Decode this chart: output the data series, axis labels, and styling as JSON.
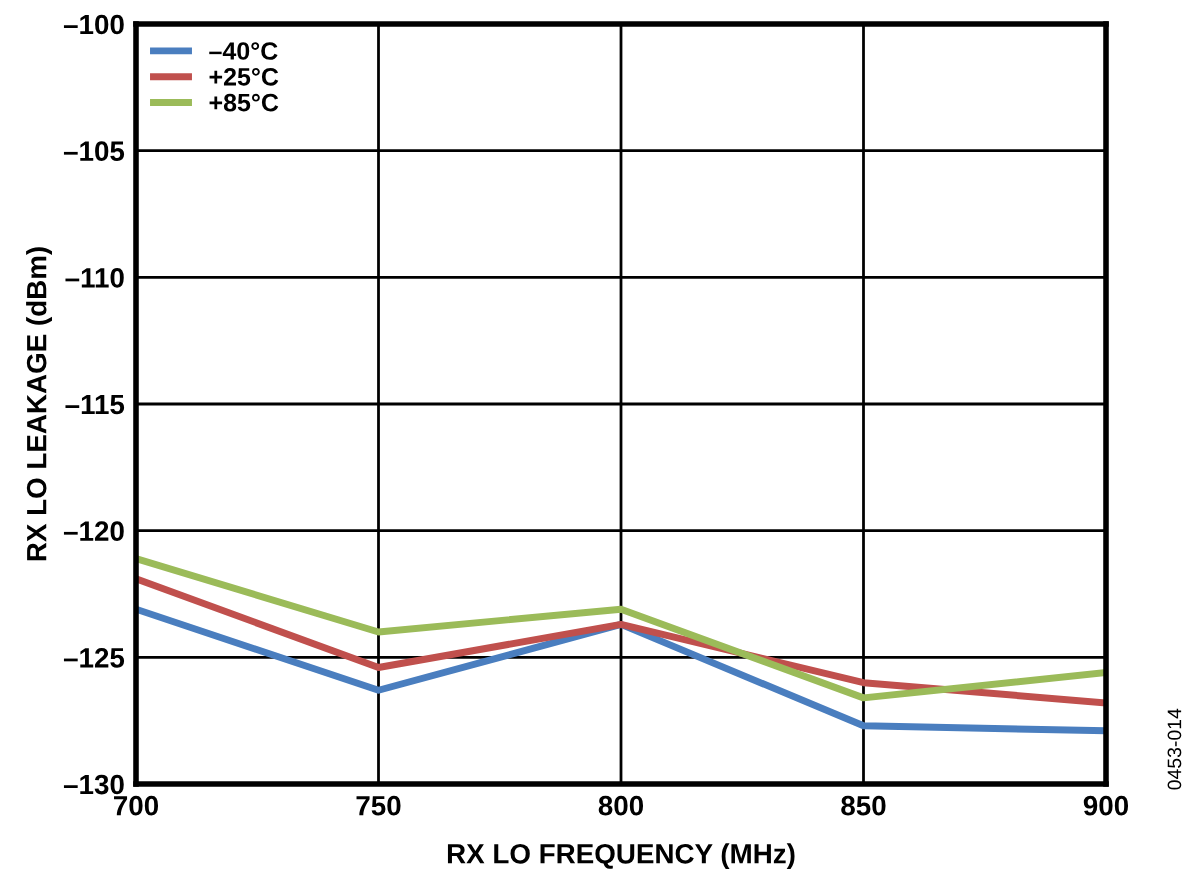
{
  "chart_data": {
    "type": "line",
    "xlabel": "RX LO FREQUENCY (MHz)",
    "ylabel": "RX LO LEAKAGE (dBm)",
    "x": [
      700,
      750,
      800,
      850,
      900
    ],
    "series": [
      {
        "name": "–40°C",
        "color": "#4a7ebf",
        "values": [
          -123.1,
          -126.3,
          -123.7,
          -127.7,
          -127.9
        ]
      },
      {
        "name": "+25°C",
        "color": "#c0504d",
        "values": [
          -121.9,
          -125.4,
          -123.7,
          -126.0,
          -126.8
        ]
      },
      {
        "name": "+85°C",
        "color": "#9bbb59",
        "values": [
          -121.1,
          -124.0,
          -123.1,
          -126.6,
          -125.6
        ]
      }
    ],
    "xlim": [
      700,
      900
    ],
    "xticks": [
      700,
      750,
      800,
      850,
      900
    ],
    "ylim": [
      -130,
      -100
    ],
    "yticks": [
      {
        "value": -130,
        "label": "–130"
      },
      {
        "value": -125,
        "label": "–125"
      },
      {
        "value": -120,
        "label": "–120"
      },
      {
        "value": -115,
        "label": "–115"
      },
      {
        "value": -110,
        "label": "–110"
      },
      {
        "value": -105,
        "label": "–105"
      },
      {
        "value": -100,
        "label": "–100"
      }
    ],
    "grid": true,
    "legend": "top left",
    "line_style": "solid",
    "marker": "none",
    "annotations": [
      "0453-014"
    ]
  }
}
